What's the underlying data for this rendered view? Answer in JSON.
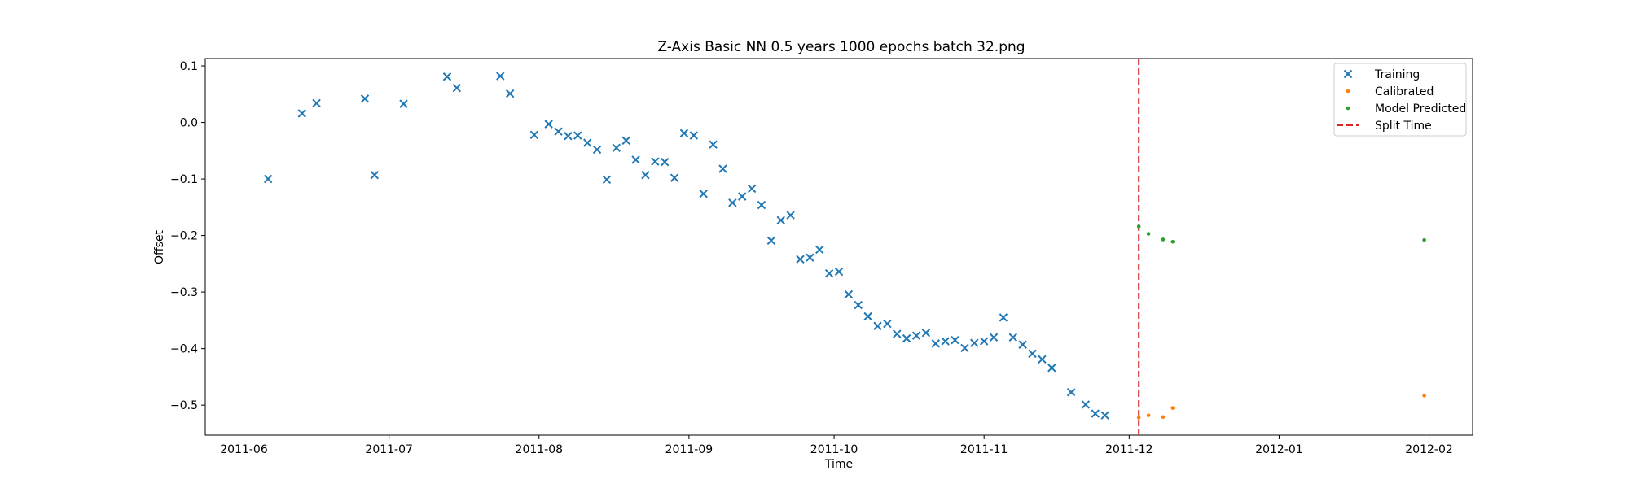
{
  "chart_data": {
    "type": "scatter",
    "title": "Z-Axis Basic NN 0.5 years 1000 epochs batch 32.png",
    "xlabel": "Time",
    "ylabel": "Offset",
    "xlim": [
      "2011-05-24",
      "2012-02-10"
    ],
    "ylim": [
      -0.553,
      0.113
    ],
    "xticks": [
      "2011-06-01",
      "2011-07-01",
      "2011-08-01",
      "2011-09-01",
      "2011-10-01",
      "2011-11-01",
      "2011-12-01",
      "2012-01-01",
      "2012-02-01"
    ],
    "xtick_labels": [
      "2011-06",
      "2011-07",
      "2011-08",
      "2011-09",
      "2011-10",
      "2011-11",
      "2011-12",
      "2012-01",
      "2012-02"
    ],
    "yticks": [
      0.1,
      0.0,
      -0.1,
      -0.2,
      -0.3,
      -0.4,
      -0.5
    ],
    "ytick_labels": [
      "0.1",
      "0.0",
      "−0.1",
      "−0.2",
      "−0.3",
      "−0.4",
      "−0.5"
    ],
    "grid": false,
    "legend_position": "top-right",
    "split_time": "2011-12-03",
    "series": [
      {
        "name": "Training",
        "marker": "x",
        "color": "#1f77b4",
        "points": [
          [
            "2011-06-06",
            -0.1
          ],
          [
            "2011-06-13",
            0.016
          ],
          [
            "2011-06-16",
            0.034
          ],
          [
            "2011-06-26",
            0.042
          ],
          [
            "2011-06-28",
            -0.093
          ],
          [
            "2011-07-04",
            0.033
          ],
          [
            "2011-07-13",
            0.081
          ],
          [
            "2011-07-15",
            0.061
          ],
          [
            "2011-07-24",
            0.082
          ],
          [
            "2011-07-26",
            0.051
          ],
          [
            "2011-07-31",
            -0.022
          ],
          [
            "2011-08-03",
            -0.003
          ],
          [
            "2011-08-05",
            -0.016
          ],
          [
            "2011-08-07",
            -0.024
          ],
          [
            "2011-08-09",
            -0.023
          ],
          [
            "2011-08-11",
            -0.036
          ],
          [
            "2011-08-13",
            -0.048
          ],
          [
            "2011-08-15",
            -0.101
          ],
          [
            "2011-08-17",
            -0.045
          ],
          [
            "2011-08-19",
            -0.032
          ],
          [
            "2011-08-21",
            -0.066
          ],
          [
            "2011-08-23",
            -0.093
          ],
          [
            "2011-08-25",
            -0.069
          ],
          [
            "2011-08-27",
            -0.07
          ],
          [
            "2011-08-29",
            -0.098
          ],
          [
            "2011-08-31",
            -0.019
          ],
          [
            "2011-09-02",
            -0.023
          ],
          [
            "2011-09-04",
            -0.126
          ],
          [
            "2011-09-06",
            -0.039
          ],
          [
            "2011-09-08",
            -0.082
          ],
          [
            "2011-09-10",
            -0.142
          ],
          [
            "2011-09-12",
            -0.131
          ],
          [
            "2011-09-14",
            -0.117
          ],
          [
            "2011-09-16",
            -0.146
          ],
          [
            "2011-09-18",
            -0.209
          ],
          [
            "2011-09-20",
            -0.173
          ],
          [
            "2011-09-22",
            -0.164
          ],
          [
            "2011-09-24",
            -0.242
          ],
          [
            "2011-09-26",
            -0.239
          ],
          [
            "2011-09-28",
            -0.225
          ],
          [
            "2011-09-30",
            -0.267
          ],
          [
            "2011-10-02",
            -0.264
          ],
          [
            "2011-10-04",
            -0.304
          ],
          [
            "2011-10-06",
            -0.323
          ],
          [
            "2011-10-08",
            -0.343
          ],
          [
            "2011-10-10",
            -0.36
          ],
          [
            "2011-10-12",
            -0.356
          ],
          [
            "2011-10-14",
            -0.374
          ],
          [
            "2011-10-16",
            -0.382
          ],
          [
            "2011-10-18",
            -0.377
          ],
          [
            "2011-10-20",
            -0.372
          ],
          [
            "2011-10-22",
            -0.391
          ],
          [
            "2011-10-24",
            -0.387
          ],
          [
            "2011-10-26",
            -0.385
          ],
          [
            "2011-10-28",
            -0.399
          ],
          [
            "2011-10-30",
            -0.39
          ],
          [
            "2011-11-01",
            -0.387
          ],
          [
            "2011-11-03",
            -0.38
          ],
          [
            "2011-11-05",
            -0.345
          ],
          [
            "2011-11-07",
            -0.38
          ],
          [
            "2011-11-09",
            -0.393
          ],
          [
            "2011-11-11",
            -0.409
          ],
          [
            "2011-11-13",
            -0.419
          ],
          [
            "2011-11-15",
            -0.434
          ],
          [
            "2011-11-19",
            -0.477
          ],
          [
            "2011-11-22",
            -0.499
          ],
          [
            "2011-11-24",
            -0.515
          ],
          [
            "2011-11-26",
            -0.518
          ]
        ]
      },
      {
        "name": "Calibrated",
        "marker": ".",
        "color": "#ff7f0e",
        "points": [
          [
            "2011-12-03",
            -0.522
          ],
          [
            "2011-12-05",
            -0.518
          ],
          [
            "2011-12-08",
            -0.521
          ],
          [
            "2011-12-10",
            -0.505
          ],
          [
            "2012-01-31",
            -0.483
          ]
        ]
      },
      {
        "name": "Model Predicted",
        "marker": ".",
        "color": "#2ca02c",
        "points": [
          [
            "2011-12-03",
            -0.184
          ],
          [
            "2011-12-05",
            -0.197
          ],
          [
            "2011-12-08",
            -0.207
          ],
          [
            "2011-12-10",
            -0.211
          ],
          [
            "2012-01-31",
            -0.208
          ]
        ]
      },
      {
        "name": "Split Time",
        "marker": "dashed-line",
        "color": "#d62728"
      }
    ]
  }
}
